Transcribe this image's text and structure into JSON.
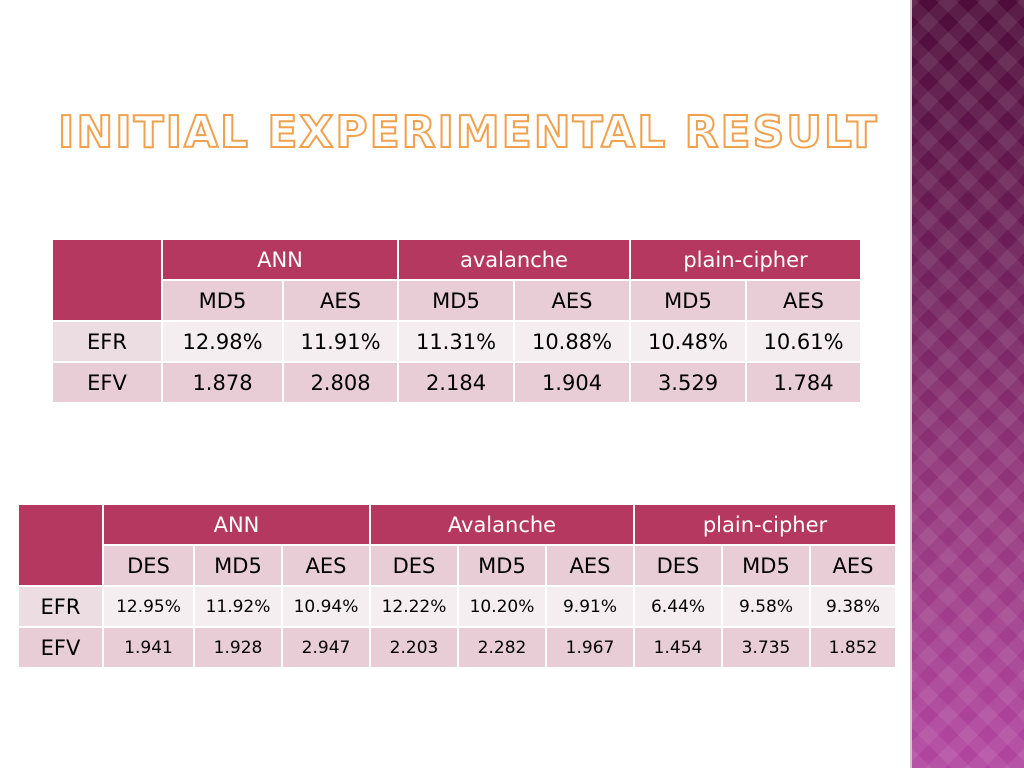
{
  "slide": {
    "title": "Initial Experimental Result"
  },
  "table1": {
    "groups": [
      {
        "label": "ANN",
        "cols": [
          "MD5",
          "AES"
        ]
      },
      {
        "label": "avalanche",
        "cols": [
          "MD5",
          "AES"
        ]
      },
      {
        "label": "plain-cipher",
        "cols": [
          "MD5",
          "AES"
        ]
      }
    ],
    "rows": [
      {
        "label": "EFR",
        "values": [
          "12.98%",
          "11.91%",
          "11.31%",
          "10.88%",
          "10.48%",
          "10.61%"
        ]
      },
      {
        "label": "EFV",
        "values": [
          "1.878",
          "2.808",
          "2.184",
          "1.904",
          "3.529",
          "1.784"
        ]
      }
    ]
  },
  "table2": {
    "groups": [
      {
        "label": "ANN",
        "cols": [
          "DES",
          "MD5",
          "AES"
        ]
      },
      {
        "label": "Avalanche",
        "cols": [
          "DES",
          "MD5",
          "AES"
        ]
      },
      {
        "label": "plain-cipher",
        "cols": [
          "DES",
          "MD5",
          "AES"
        ]
      }
    ],
    "rows": [
      {
        "label": "EFR",
        "values": [
          "12.95%",
          "11.92%",
          "10.94%",
          "12.22%",
          "10.20%",
          "9.91%",
          "6.44%",
          "9.58%",
          "9.38%"
        ]
      },
      {
        "label": "EFV",
        "values": [
          "1.941",
          "1.928",
          "2.947",
          "2.203",
          "2.282",
          "1.967",
          "1.454",
          "3.735",
          "1.852"
        ]
      }
    ]
  },
  "theme": {
    "header": "#b4385f",
    "title_outline": "#f1a14d",
    "band_top": "#4d0c3a",
    "band_bottom": "#b246a0"
  }
}
